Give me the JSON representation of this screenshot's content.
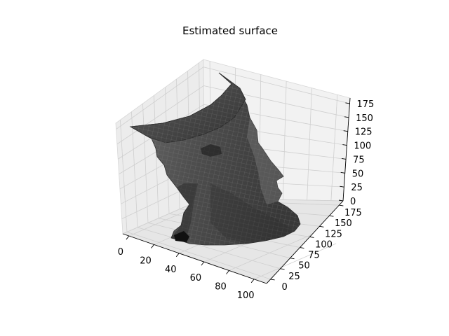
{
  "chart_data": {
    "type": "surface3d",
    "title": "Estimated surface",
    "xlabel": "",
    "ylabel": "",
    "zlabel": "",
    "x_ticks": [
      "0",
      "20",
      "40",
      "60",
      "80",
      "100"
    ],
    "y_ticks": [
      "0",
      "25",
      "50",
      "75",
      "100",
      "125",
      "150",
      "175"
    ],
    "z_ticks": [
      "0",
      "25",
      "50",
      "75",
      "100",
      "125",
      "150",
      "175"
    ],
    "xlim": [
      -5,
      110
    ],
    "ylim": [
      -10,
      185
    ],
    "zlim": [
      0,
      185
    ],
    "grid": true,
    "colormap": "gray",
    "surface_color": "#4a4a4a",
    "pane_colors": {
      "left": "#ececec",
      "back": "#f2f2f2",
      "floor": "#e6e6e6"
    }
  }
}
